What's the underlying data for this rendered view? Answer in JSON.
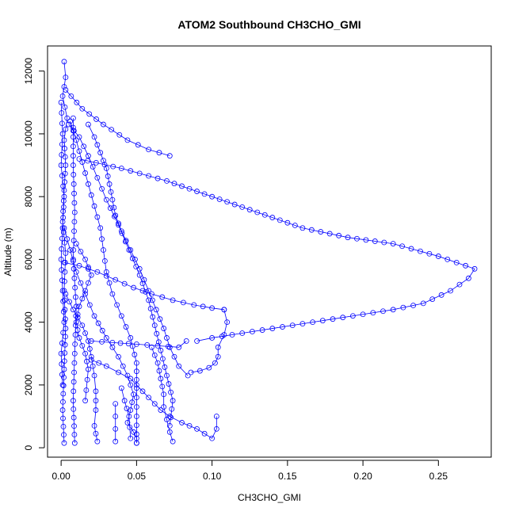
{
  "chart_data": {
    "type": "scatter",
    "title": "ATOM2 Southbound CH3CHO_GMI",
    "xlabel": "CH3CHO_GMI",
    "ylabel": "Altitude (m)",
    "xlim": [
      -0.009,
      0.285
    ],
    "ylim": [
      -300,
      12800
    ],
    "x_ticks": [
      0.0,
      0.05,
      0.1,
      0.15,
      0.2,
      0.25
    ],
    "x_tick_labels": [
      "0.00",
      "0.05",
      "0.10",
      "0.15",
      "0.20",
      "0.25"
    ],
    "y_ticks": [
      0,
      2000,
      4000,
      6000,
      8000,
      10000,
      12000
    ],
    "y_tick_labels": [
      "0",
      "2000",
      "4000",
      "6000",
      "8000",
      "10000",
      "12000"
    ],
    "marker": "open-circle",
    "connected": true,
    "legend": "none",
    "grid": false,
    "color": "#0000ff",
    "series": [
      {
        "x": [
          0.002,
          0.003,
          0.001,
          0.004,
          0.002,
          0.003,
          0.002,
          0.001,
          0.003,
          0.002,
          0.003,
          0.002,
          0.001,
          0.002
        ],
        "y": [
          12300,
          11800,
          11200,
          10500,
          9800,
          9000,
          8200,
          7200,
          6200,
          5000,
          3800,
          2500,
          1200,
          150
        ]
      },
      {
        "x": [
          0.005,
          0.012,
          0.018,
          0.024,
          0.03,
          0.038,
          0.045,
          0.052,
          0.058,
          0.062,
          0.066,
          0.07,
          0.074,
          0.072
        ],
        "y": [
          10300,
          9900,
          9300,
          8600,
          7900,
          7100,
          6300,
          5500,
          4700,
          3900,
          3100,
          2300,
          1500,
          700
        ]
      },
      {
        "x": [
          0.018,
          0.022,
          0.026,
          0.03,
          0.032,
          0.034,
          0.036,
          0.04,
          0.046,
          0.052,
          0.058,
          0.063,
          0.068,
          0.072,
          0.078,
          0.084
        ],
        "y": [
          10300,
          9900,
          9400,
          8900,
          8400,
          7900,
          7400,
          6900,
          6300,
          5700,
          5000,
          4400,
          3800,
          3200,
          2600,
          2300
        ]
      },
      {
        "x": [
          0.006,
          0.01,
          0.014,
          0.018,
          0.022,
          0.026,
          0.028,
          0.03,
          0.034,
          0.04,
          0.046,
          0.05,
          0.05,
          0.05,
          0.05
        ],
        "y": [
          10400,
          9800,
          9100,
          8400,
          7700,
          7000,
          6300,
          5600,
          4900,
          4200,
          3500,
          2700,
          1900,
          1000,
          150
        ]
      },
      {
        "x": [
          0.002,
          0.012,
          0.024,
          0.036,
          0.048,
          0.06,
          0.074,
          0.088,
          0.1,
          0.108
        ],
        "y": [
          5900,
          5800,
          5600,
          5350,
          5100,
          4900,
          4700,
          4550,
          4450,
          4400
        ]
      },
      {
        "x": [
          0.108,
          0.11,
          0.108,
          0.104,
          0.104,
          0.102,
          0.098,
          0.092,
          0.086
        ],
        "y": [
          4400,
          4000,
          3600,
          3200,
          2900,
          2700,
          2550,
          2450,
          2400
        ]
      },
      {
        "x": [
          0.002,
          0.006,
          0.01,
          0.016,
          0.022,
          0.03,
          0.038,
          0.044,
          0.048,
          0.046,
          0.044,
          0.048,
          0.05,
          0.05
        ],
        "y": [
          7000,
          6300,
          5600,
          4900,
          4200,
          3500,
          2900,
          2300,
          1700,
          1200,
          800,
          500,
          300,
          150
        ]
      },
      {
        "x": [
          0.003,
          0.008,
          0.014,
          0.018,
          0.02,
          0.022,
          0.023,
          0.023,
          0.022,
          0.024
        ],
        "y": [
          4900,
          4400,
          3900,
          3400,
          2900,
          2300,
          1800,
          1200,
          700,
          200
        ]
      },
      {
        "x": [
          0.01,
          0.016,
          0.02,
          0.016,
          0.012,
          0.01,
          0.012,
          0.016,
          0.018,
          0.016
        ],
        "y": [
          6500,
          6000,
          5500,
          5000,
          4500,
          4000,
          3500,
          3000,
          2500,
          1500
        ]
      },
      {
        "x": [
          0.02,
          0.03,
          0.038,
          0.046,
          0.05,
          0.054,
          0.058,
          0.062,
          0.066,
          0.072,
          0.08,
          0.09,
          0.1,
          0.103,
          0.103
        ],
        "y": [
          2800,
          2600,
          2400,
          2200,
          2000,
          1800,
          1600,
          1400,
          1200,
          1000,
          800,
          600,
          300,
          600,
          1000
        ]
      },
      {
        "x": [
          0.036,
          0.036,
          0.036,
          0.036
        ],
        "y": [
          1400,
          1000,
          600,
          200
        ]
      },
      {
        "x": [
          0.04,
          0.042,
          0.045,
          0.046
        ],
        "y": [
          1900,
          1500,
          1000,
          300
        ]
      },
      {
        "x": [
          0.06,
          0.064,
          0.066,
          0.068,
          0.068,
          0.07,
          0.072,
          0.074
        ],
        "y": [
          3200,
          2700,
          2200,
          1700,
          1300,
          900,
          500,
          200
        ]
      },
      {
        "x": [
          0.003,
          0.014,
          0.028,
          0.044,
          0.058,
          0.072
        ],
        "y": [
          11400,
          10800,
          10300,
          9800,
          9500,
          9300
        ]
      },
      {
        "x": [
          0.02,
          0.034,
          0.05,
          0.064,
          0.078,
          0.083
        ],
        "y": [
          3400,
          3350,
          3300,
          3250,
          3200,
          3400
        ]
      },
      {
        "x": [
          0.012,
          0.04,
          0.07,
          0.1,
          0.13,
          0.16,
          0.19,
          0.22,
          0.25,
          0.268,
          0.274,
          0.27,
          0.258,
          0.24,
          0.22,
          0.2,
          0.18,
          0.16,
          0.14,
          0.12,
          0.1,
          0.09
        ],
        "y": [
          9200,
          8900,
          8500,
          8000,
          7500,
          7000,
          6700,
          6500,
          6100,
          5800,
          5700,
          5400,
          5000,
          4600,
          4400,
          4250,
          4100,
          3950,
          3800,
          3650,
          3500,
          3400
        ]
      },
      {
        "x": [
          0.0,
          0.001,
          0.0,
          0.002,
          0.001,
          0.0,
          0.001,
          0.002,
          0.0,
          0.001
        ],
        "y": [
          11000,
          10000,
          9000,
          8000,
          7000,
          6000,
          5000,
          4000,
          3000,
          2000
        ]
      },
      {
        "x": [
          0.008,
          0.008,
          0.009,
          0.008,
          0.01,
          0.009,
          0.008,
          0.009
        ],
        "y": [
          10500,
          9000,
          7500,
          6000,
          4500,
          3000,
          1500,
          150
        ]
      }
    ]
  }
}
